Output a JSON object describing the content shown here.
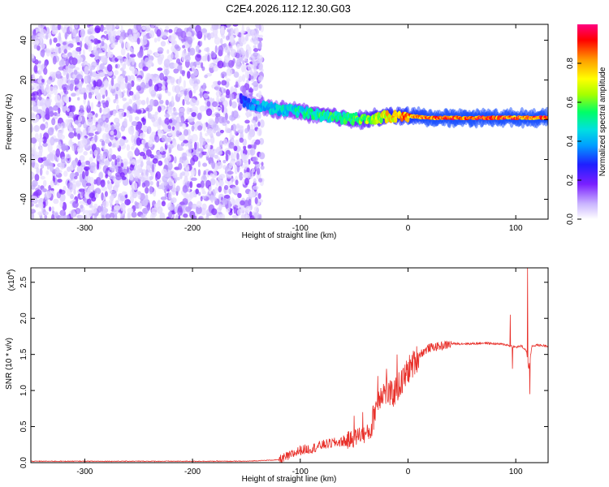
{
  "chart_data": [
    {
      "type": "heatmap",
      "title": "C2E4.2026.112.12.30.G03",
      "xlabel": "Height of straight line (km)",
      "ylabel": "Frequency (Hz)",
      "xlim": [
        -350,
        130
      ],
      "ylim": [
        -50,
        48
      ],
      "xticks": [
        -300,
        -200,
        -100,
        0,
        100
      ],
      "yticks": [
        -40,
        -20,
        0,
        20,
        40
      ],
      "colorbar": {
        "label": "Normalized spectral amplitude",
        "range": [
          0,
          1
        ],
        "ticks": [
          "0.0",
          "0.2",
          "0.4",
          "0.6",
          "0.8"
        ],
        "tick_values": [
          0,
          0.2,
          0.4,
          0.6,
          0.8
        ],
        "colors": [
          "#ffffff",
          "#7a1fff",
          "#1f1fff",
          "#00d4ff",
          "#00ff66",
          "#a6ff00",
          "#ffff00",
          "#ff9900",
          "#ff0000",
          "#ff0080"
        ]
      },
      "noise_region_x": [
        -350,
        -135
      ],
      "signal_track": {
        "x": [
          -155,
          -140,
          -120,
          -100,
          -80,
          -60,
          -45,
          -30,
          -10,
          0,
          20,
          60,
          100,
          130
        ],
        "freq": [
          10,
          7,
          5,
          4,
          2,
          1,
          0,
          1,
          2,
          2,
          1,
          1,
          1,
          1
        ],
        "amplitude": [
          0.3,
          0.4,
          0.45,
          0.5,
          0.55,
          0.55,
          0.6,
          0.7,
          0.8,
          0.85,
          0.9,
          0.9,
          0.9,
          0.9
        ]
      }
    },
    {
      "type": "line",
      "xlabel": "Height of straight line (km)",
      "ylabel": "SNR (10 * v/v)",
      "y_multiplier": "(x10",
      "y_exponent": "4",
      "y_multiplier_close": ")",
      "xlim": [
        -350,
        130
      ],
      "ylim": [
        0,
        2.7
      ],
      "xticks": [
        -300,
        -200,
        -100,
        0,
        100
      ],
      "yticks": [
        0.0,
        0.5,
        1.0,
        1.5,
        2.0,
        2.5
      ],
      "ytick_labels": [
        "0.0",
        "0.5",
        "1.0",
        "1.5",
        "2.0",
        "2.5"
      ],
      "color": "#e8302a",
      "series": [
        {
          "name": "SNR",
          "x": [
            -350,
            -300,
            -250,
            -200,
            -150,
            -120,
            -110,
            -100,
            -90,
            -80,
            -70,
            -60,
            -50,
            -45,
            -40,
            -35,
            -30,
            -25,
            -20,
            -15,
            -10,
            -5,
            0,
            5,
            10,
            15,
            20,
            30,
            40,
            50,
            60,
            70,
            80,
            90,
            95,
            100,
            105,
            110,
            112,
            115,
            120,
            130
          ],
          "y": [
            0.02,
            0.02,
            0.02,
            0.02,
            0.02,
            0.04,
            0.1,
            0.18,
            0.2,
            0.25,
            0.28,
            0.3,
            0.35,
            0.4,
            0.4,
            0.45,
            0.8,
            1.0,
            1.0,
            0.95,
            1.05,
            1.15,
            1.3,
            1.4,
            1.5,
            1.55,
            1.6,
            1.62,
            1.65,
            1.65,
            1.65,
            1.66,
            1.65,
            1.64,
            1.62,
            1.6,
            1.62,
            1.55,
            1.3,
            1.62,
            1.63,
            1.62
          ]
        }
      ],
      "spikes": [
        {
          "x": 95,
          "y": 2.05
        },
        {
          "x": 97,
          "y": 1.3
        },
        {
          "x": 111,
          "y": 2.7
        },
        {
          "x": 113,
          "y": 0.95
        },
        {
          "x": -50,
          "y": 0.65
        },
        {
          "x": -42,
          "y": 0.7
        },
        {
          "x": -28,
          "y": 1.2
        },
        {
          "x": -20,
          "y": 1.3
        },
        {
          "x": -10,
          "y": 1.5
        },
        {
          "x": 5,
          "y": 1.55
        }
      ]
    }
  ]
}
